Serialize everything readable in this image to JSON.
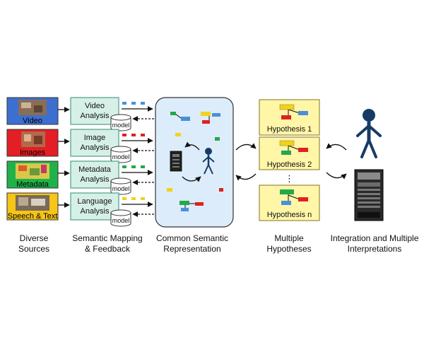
{
  "colors": {
    "video": "#3d6fd0",
    "images": "#e31e24",
    "metadata": "#1fb24a",
    "speech": "#f5c518",
    "analysis_fill": "#d6f0e8",
    "analysis_stroke": "#4e9c8a",
    "csr_fill": "#dcecfa",
    "hypo_fill": "#fff6a8",
    "hypo_stroke": "#9a8a3c",
    "person": "#163c66",
    "node_blue": "#4a90d9",
    "node_red": "#e02020",
    "node_yellow": "#f2d21a",
    "node_green": "#23a84a"
  },
  "sources": [
    {
      "label": "Video",
      "color_key": "video"
    },
    {
      "label": "Images",
      "color_key": "images"
    },
    {
      "label": "Metadata",
      "color_key": "metadata"
    },
    {
      "label": "Speech & Text",
      "color_key": "speech"
    }
  ],
  "analysis": [
    {
      "line1": "Video",
      "line2": "Analysis"
    },
    {
      "line1": "Image",
      "line2": "Analysis"
    },
    {
      "line1": "Metadata",
      "line2": "Analysis"
    },
    {
      "line1": "Language",
      "line2": "Analysis"
    }
  ],
  "model_label": "model",
  "hypotheses": [
    {
      "label": "Hypothesis 1"
    },
    {
      "label": "Hypothesis 2"
    },
    {
      "label": "Hypothesis n"
    }
  ],
  "hypothesis_ellipsis": "⋮",
  "captions": [
    {
      "line1": "Diverse",
      "line2": "Sources"
    },
    {
      "line1": "Semantic Mapping",
      "line2": "& Feedback"
    },
    {
      "line1": "Common Semantic",
      "line2": "Representation"
    },
    {
      "line1": "Multiple",
      "line2": "Hypotheses"
    },
    {
      "line1": "Integration and Multiple",
      "line2": "Interpretations"
    }
  ]
}
